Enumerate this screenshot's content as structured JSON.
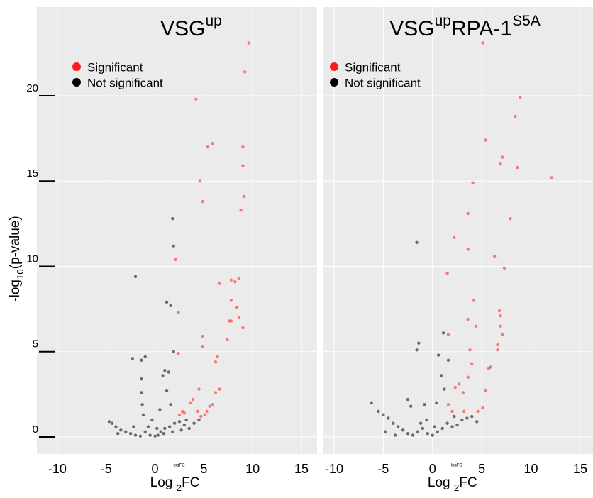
{
  "chart_data": [
    {
      "type": "scatter",
      "title": [
        {
          "text": "VSG",
          "script": "base"
        },
        {
          "text": "up",
          "script": "sup"
        }
      ],
      "xlabel": [
        {
          "text": "Log ",
          "script": "base"
        },
        {
          "text": "2",
          "script": "sub"
        },
        {
          "text": "FC",
          "script": "base"
        }
      ],
      "ylabel": [
        {
          "text": "-log",
          "script": "base"
        },
        {
          "text": "10",
          "script": "sub"
        },
        {
          "text": "(p-value)",
          "script": "base"
        }
      ],
      "small_label": "logFC",
      "xlim": [
        -12.1,
        16.6
      ],
      "ylim": [
        -1,
        25.2
      ],
      "xticks": [
        -10,
        -5,
        0,
        5,
        10,
        15
      ],
      "yticks": [
        0,
        5,
        10,
        15,
        20
      ],
      "ytick_labels": true,
      "grid": true,
      "legend": "top-left",
      "alpha": 0.55,
      "series": [
        {
          "name": "Significant",
          "color": "#ff1a1a",
          "x": [
            9.6,
            9.2,
            4.2,
            5.4,
            5.9,
            9.0,
            9.0,
            4.6,
            8.8,
            4.9,
            9.1,
            6.6,
            7.8,
            8.2,
            8.6,
            7.8,
            8.4,
            2.4,
            7.6,
            7.8,
            8.6,
            9.0,
            2.1,
            7.4,
            4.9,
            4.9,
            2.4,
            6.4,
            6.2,
            4.5,
            6.6,
            6.2,
            3.9,
            3.6,
            5.9,
            5.6,
            5.3,
            5.1,
            4.4,
            3.0,
            2.5,
            2.8,
            4.7
          ],
          "y": [
            23.1,
            21.4,
            19.8,
            17.0,
            17.2,
            17.0,
            15.9,
            15.0,
            13.3,
            13.8,
            14.1,
            9.0,
            9.2,
            9.1,
            9.3,
            8.0,
            7.6,
            7.3,
            6.8,
            6.8,
            7.0,
            6.4,
            10.4,
            5.7,
            5.9,
            5.3,
            4.9,
            4.7,
            4.4,
            2.8,
            2.8,
            2.6,
            2.2,
            2.0,
            1.9,
            1.8,
            1.5,
            1.3,
            1.5,
            1.4,
            1.3,
            1.5,
            1.2
          ]
        },
        {
          "name": "Not significant",
          "color": "#000000",
          "x": [
            -2.0,
            1.8,
            1.9,
            1.2,
            1.6,
            1.9,
            -2.3,
            -1.0,
            -1.4,
            1.0,
            1.4,
            -1.4,
            0.8,
            1.2,
            -1.4,
            -1.3,
            0.5,
            1.6,
            -1.2,
            -0.3,
            0.2,
            -4.7,
            -4.4,
            -4.0,
            -3.5,
            -3.0,
            -2.5,
            -2.0,
            -1.5,
            -0.5,
            0,
            0.3,
            0.6,
            1.0,
            1.5,
            2.0,
            2.5,
            3.0,
            3.5,
            4.0,
            4.5,
            -3.8,
            -1.0,
            -0.7,
            0.9,
            1.8,
            2.7,
            -2.2,
            3.2
          ],
          "y": [
            9.4,
            12.8,
            11.2,
            7.9,
            7.7,
            5.0,
            4.6,
            4.7,
            4.5,
            3.9,
            3.8,
            3.4,
            3.6,
            2.7,
            2.6,
            1.9,
            1.6,
            1.9,
            1.3,
            1.0,
            0.5,
            0.9,
            0.8,
            0.6,
            0.4,
            0.3,
            0.2,
            0.1,
            0.05,
            0.1,
            0.05,
            0.1,
            0.3,
            0.5,
            0.6,
            0.8,
            0.9,
            0.7,
            0.5,
            0.8,
            1.0,
            0.2,
            0.3,
            0.6,
            0.2,
            0.3,
            0.4,
            0.6,
            1.0
          ]
        }
      ]
    },
    {
      "type": "scatter",
      "title": [
        {
          "text": "VSG",
          "script": "base"
        },
        {
          "text": "up",
          "script": "sup"
        },
        {
          "text": "RPA-1",
          "script": "base"
        },
        {
          "text": "S5A",
          "script": "sup"
        }
      ],
      "xlabel": [
        {
          "text": "Log ",
          "script": "base"
        },
        {
          "text": "2",
          "script": "sub"
        },
        {
          "text": "FC",
          "script": "base"
        }
      ],
      "small_label": "logFC",
      "xlim": [
        -11.15,
        16.3
      ],
      "ylim": [
        -1,
        25.2
      ],
      "xticks": [
        -10,
        -5,
        0,
        5,
        10,
        15
      ],
      "yticks": [
        0,
        5,
        10,
        15,
        20
      ],
      "ytick_labels": false,
      "grid": true,
      "legend": "top-left",
      "alpha": 0.55,
      "series": [
        {
          "name": "Significant",
          "color": "#ff1a1a",
          "x": [
            5.1,
            8.9,
            8.4,
            5.4,
            7.1,
            6.9,
            8.6,
            12.1,
            4.1,
            7.9,
            3.6,
            2.2,
            6.3,
            3.6,
            7.3,
            1.5,
            4.2,
            6.8,
            6.9,
            3.6,
            4.4,
            6.9,
            7.1,
            6.6,
            3.8,
            1.6,
            6.6,
            5.7,
            5.9,
            4.0,
            3.6,
            2.3,
            2.7,
            3.1,
            5.4,
            5.1,
            4.6,
            2.0,
            1.6,
            3.2
          ],
          "y": [
            23.1,
            19.9,
            18.8,
            17.4,
            16.4,
            16.0,
            15.8,
            15.2,
            14.9,
            12.8,
            13.1,
            11.7,
            10.6,
            11.0,
            9.9,
            9.6,
            8.0,
            7.4,
            7.1,
            6.9,
            6.5,
            6.5,
            6.0,
            5.4,
            5.1,
            6.0,
            5.1,
            4.0,
            4.1,
            4.3,
            3.5,
            2.9,
            3.1,
            2.6,
            2.7,
            1.7,
            1.5,
            1.5,
            1.9,
            1.5
          ]
        },
        {
          "name": "Not significant",
          "color": "#000000",
          "x": [
            -1.6,
            -1.4,
            -1.6,
            1.1,
            1.6,
            0.9,
            0.6,
            1.2,
            -2.5,
            -2.2,
            -0.6,
            -0.8,
            0.4,
            -6.2,
            -5.5,
            -5.0,
            -4.5,
            -4.0,
            -3.5,
            -3.0,
            -2.5,
            -2.0,
            -1.5,
            -1.0,
            -0.5,
            0,
            0.5,
            1.0,
            1.5,
            2.0,
            2.5,
            3.0,
            3.5,
            4.0,
            4.5,
            -4.8,
            -3.8,
            -1.2,
            0.2,
            2.2
          ],
          "y": [
            11.4,
            5.5,
            5.1,
            6.1,
            4.5,
            3.6,
            4.8,
            2.8,
            2.2,
            1.8,
            1.0,
            1.9,
            2.0,
            2.0,
            1.5,
            1.3,
            1.1,
            0.8,
            0.6,
            0.4,
            0.2,
            0.1,
            0.3,
            0.5,
            0.2,
            0.1,
            0.3,
            0.5,
            0.8,
            0.6,
            0.7,
            1.0,
            1.1,
            1.2,
            0.9,
            0.3,
            0.1,
            0.8,
            0.6,
            1.2
          ]
        }
      ]
    }
  ]
}
